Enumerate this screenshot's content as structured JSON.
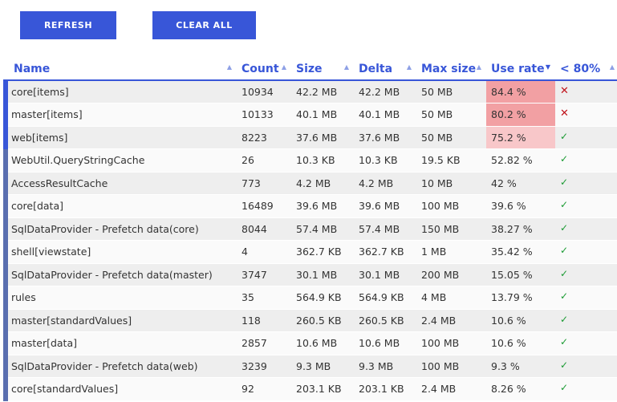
{
  "toolbar": {
    "refresh_label": "REFRESH",
    "clear_all_label": "CLEAR ALL"
  },
  "table": {
    "columns": [
      "Name",
      "Count",
      "Size",
      "Delta",
      "Max size",
      "Use rate",
      "< 80%"
    ],
    "sorted_column": "Use rate",
    "rows": [
      {
        "name": "core[items]",
        "count": "10934",
        "size": "42.2 MB",
        "delta": "42.2 MB",
        "max": "50 MB",
        "rate": "84.4 %",
        "status": "x-icon"
      },
      {
        "name": "master[items]",
        "count": "10133",
        "size": "40.1 MB",
        "delta": "40.1 MB",
        "max": "50 MB",
        "rate": "80.2 %",
        "status": "x-icon"
      },
      {
        "name": "web[items]",
        "count": "8223",
        "size": "37.6 MB",
        "delta": "37.6 MB",
        "max": "50 MB",
        "rate": "75.2 %",
        "status": "check-icon"
      },
      {
        "name": "WebUtil.QueryStringCache",
        "count": "26",
        "size": "10.3 KB",
        "delta": "10.3 KB",
        "max": "19.5 KB",
        "rate": "52.82 %",
        "status": "check-icon"
      },
      {
        "name": "AccessResultCache",
        "count": "773",
        "size": "4.2 MB",
        "delta": "4.2 MB",
        "max": "10 MB",
        "rate": "42 %",
        "status": "check-icon"
      },
      {
        "name": "core[data]",
        "count": "16489",
        "size": "39.6 MB",
        "delta": "39.6 MB",
        "max": "100 MB",
        "rate": "39.6 %",
        "status": "check-icon"
      },
      {
        "name": "SqlDataProvider - Prefetch data(core)",
        "count": "8044",
        "size": "57.4 MB",
        "delta": "57.4 MB",
        "max": "150 MB",
        "rate": "38.27 %",
        "status": "check-icon"
      },
      {
        "name": "shell[viewstate]",
        "count": "4",
        "size": "362.7 KB",
        "delta": "362.7 KB",
        "max": "1 MB",
        "rate": "35.42 %",
        "status": "check-icon"
      },
      {
        "name": "SqlDataProvider - Prefetch data(master)",
        "count": "3747",
        "size": "30.1 MB",
        "delta": "30.1 MB",
        "max": "200 MB",
        "rate": "15.05 %",
        "status": "check-icon"
      },
      {
        "name": "rules",
        "count": "35",
        "size": "564.9 KB",
        "delta": "564.9 KB",
        "max": "4 MB",
        "rate": "13.79 %",
        "status": "check-icon"
      },
      {
        "name": "master[standardValues]",
        "count": "118",
        "size": "260.5 KB",
        "delta": "260.5 KB",
        "max": "2.4 MB",
        "rate": "10.6 %",
        "status": "check-icon"
      },
      {
        "name": "master[data]",
        "count": "2857",
        "size": "10.6 MB",
        "delta": "10.6 MB",
        "max": "100 MB",
        "rate": "10.6 %",
        "status": "check-icon"
      },
      {
        "name": "SqlDataProvider - Prefetch data(web)",
        "count": "3239",
        "size": "9.3 MB",
        "delta": "9.3 MB",
        "max": "100 MB",
        "rate": "9.3 %",
        "status": "check-icon"
      },
      {
        "name": "core[standardValues]",
        "count": "92",
        "size": "203.1 KB",
        "delta": "203.1 KB",
        "max": "2.4 MB",
        "rate": "8.26 %",
        "status": "check-icon"
      }
    ]
  },
  "colors": {
    "accent": "#3856d8",
    "rate_high": "#f2a0a3",
    "rate_mid": "#f8c7c9",
    "fail": "#c0141c",
    "ok": "#1a9a32"
  }
}
